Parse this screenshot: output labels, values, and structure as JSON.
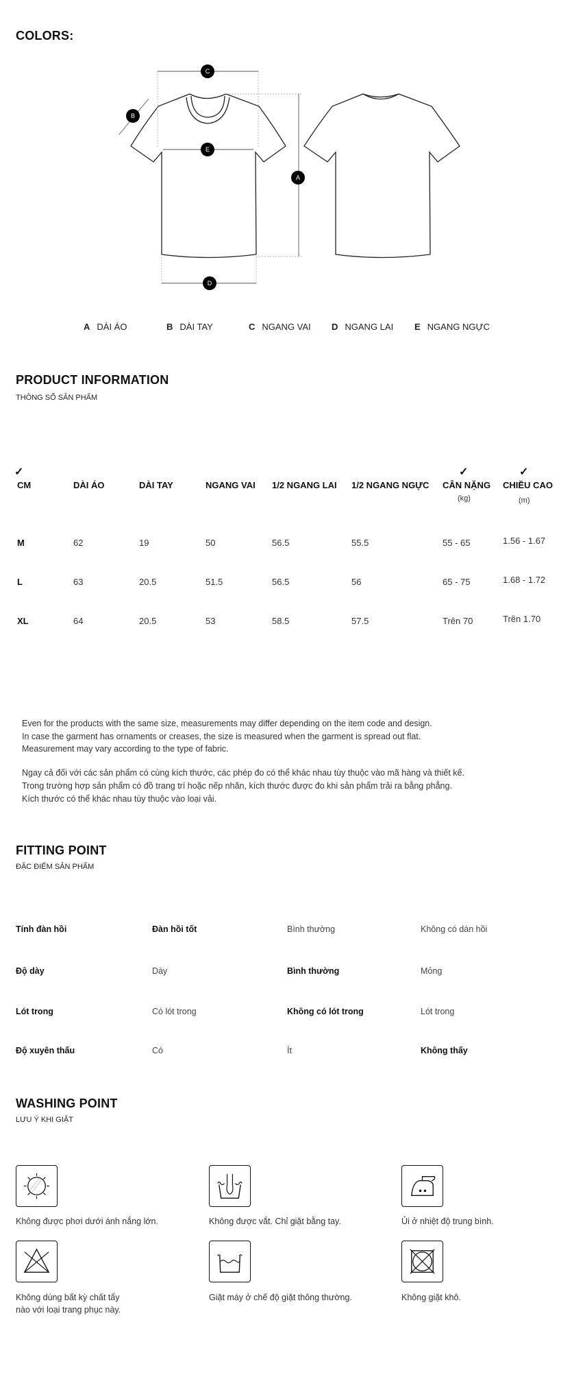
{
  "colors_heading": "COLORS:",
  "diagram": {
    "markers": [
      "A",
      "B",
      "C",
      "D",
      "E"
    ],
    "legend": [
      {
        "key": "A",
        "label": "DÀI ÁO"
      },
      {
        "key": "B",
        "label": "DÀI TAY"
      },
      {
        "key": "C",
        "label": "NGANG VAI"
      },
      {
        "key": "D",
        "label": "NGANG LAI"
      },
      {
        "key": "E",
        "label": "NGANG NGỰC"
      }
    ]
  },
  "product_info": {
    "title": "PRODUCT INFORMATION",
    "subtitle": "THÔNG SỐ SẢN PHẨM",
    "check": "✓",
    "headers": [
      "CM",
      "DÀI ÁO",
      "DÀI TAY",
      "NGANG VAI",
      "1/2 NGANG LAI",
      "1/2 NGANG NGỰC",
      "CÂN NẶNG",
      "CHIỀU CAO"
    ],
    "units": {
      "weight": "(kg)",
      "height": "(m)"
    },
    "rows": [
      [
        "M",
        "62",
        "19",
        "50",
        "56.5",
        "55.5",
        "55 - 65",
        "1.56 - 1.67"
      ],
      [
        "L",
        "63",
        "20.5",
        "51.5",
        "56.5",
        "56",
        "65 - 75",
        "1.68 - 1.72"
      ],
      [
        "XL",
        "64",
        "20.5",
        "53",
        "58.5",
        "57.5",
        "Trên 70",
        "Trên 1.70"
      ]
    ],
    "notes_en": [
      "Even for the products with the same size, measurements may differ depending on the item code and design.",
      "In case the garment has ornaments or creases, the size is measured when the garment is spread out flat.",
      "Measurement may vary according to the type of fabric."
    ],
    "notes_vi": [
      "Ngay cả đối với các sản phẩm có cùng kích thước, các phép đo có thể khác nhau tùy thuộc vào mã hàng và thiết kế.",
      "Trong trường hợp sản phẩm có đồ trang trí hoặc nếp nhăn, kích thước được đo khi sản phẩm trải ra bằng phẳng.",
      "Kích thước có thể khác nhau tùy thuộc vào loại vải."
    ]
  },
  "fitting": {
    "title": "FITTING POINT",
    "subtitle": "ĐẶC ĐIỂM SẢN PHẨM",
    "rows": [
      {
        "label": "Tính đàn hồi",
        "options": [
          "Đàn hồi tốt",
          "Bình thường",
          "Không có dàn hồi"
        ],
        "selected": 0
      },
      {
        "label": "Độ dày",
        "options": [
          "Dày",
          "Bình thường",
          "Mỏng"
        ],
        "selected": 1
      },
      {
        "label": "Lót trong",
        "options": [
          "Có lót trong",
          "Không có lót trong",
          "Lót trong"
        ],
        "selected": 1
      },
      {
        "label": "Độ xuyên thấu",
        "options": [
          "Có",
          "Ít",
          "Không thấy"
        ],
        "selected": 2
      }
    ]
  },
  "washing": {
    "title": "WASHING POINT",
    "subtitle": "LƯU Ý KHI GIẶT",
    "items": [
      {
        "icon": "no-sun-dry-icon",
        "caption": [
          "Không được phơi dưới ánh nắng lớn."
        ]
      },
      {
        "icon": "hand-wash-icon",
        "caption": [
          "Không được vắt. Chỉ giặt bằng tay."
        ]
      },
      {
        "icon": "iron-medium-icon",
        "caption": [
          "Ủi ở nhiệt độ trung bình."
        ]
      },
      {
        "icon": "no-bleach-icon",
        "caption": [
          "Không dùng bất kỳ chất tẩy",
          "nào với loại trang phục này."
        ]
      },
      {
        "icon": "machine-wash-icon",
        "caption": [
          "Giặt máy ở chế độ giặt thông thường."
        ]
      },
      {
        "icon": "no-dry-clean-icon",
        "caption": [
          "Không giặt khô."
        ]
      }
    ]
  }
}
